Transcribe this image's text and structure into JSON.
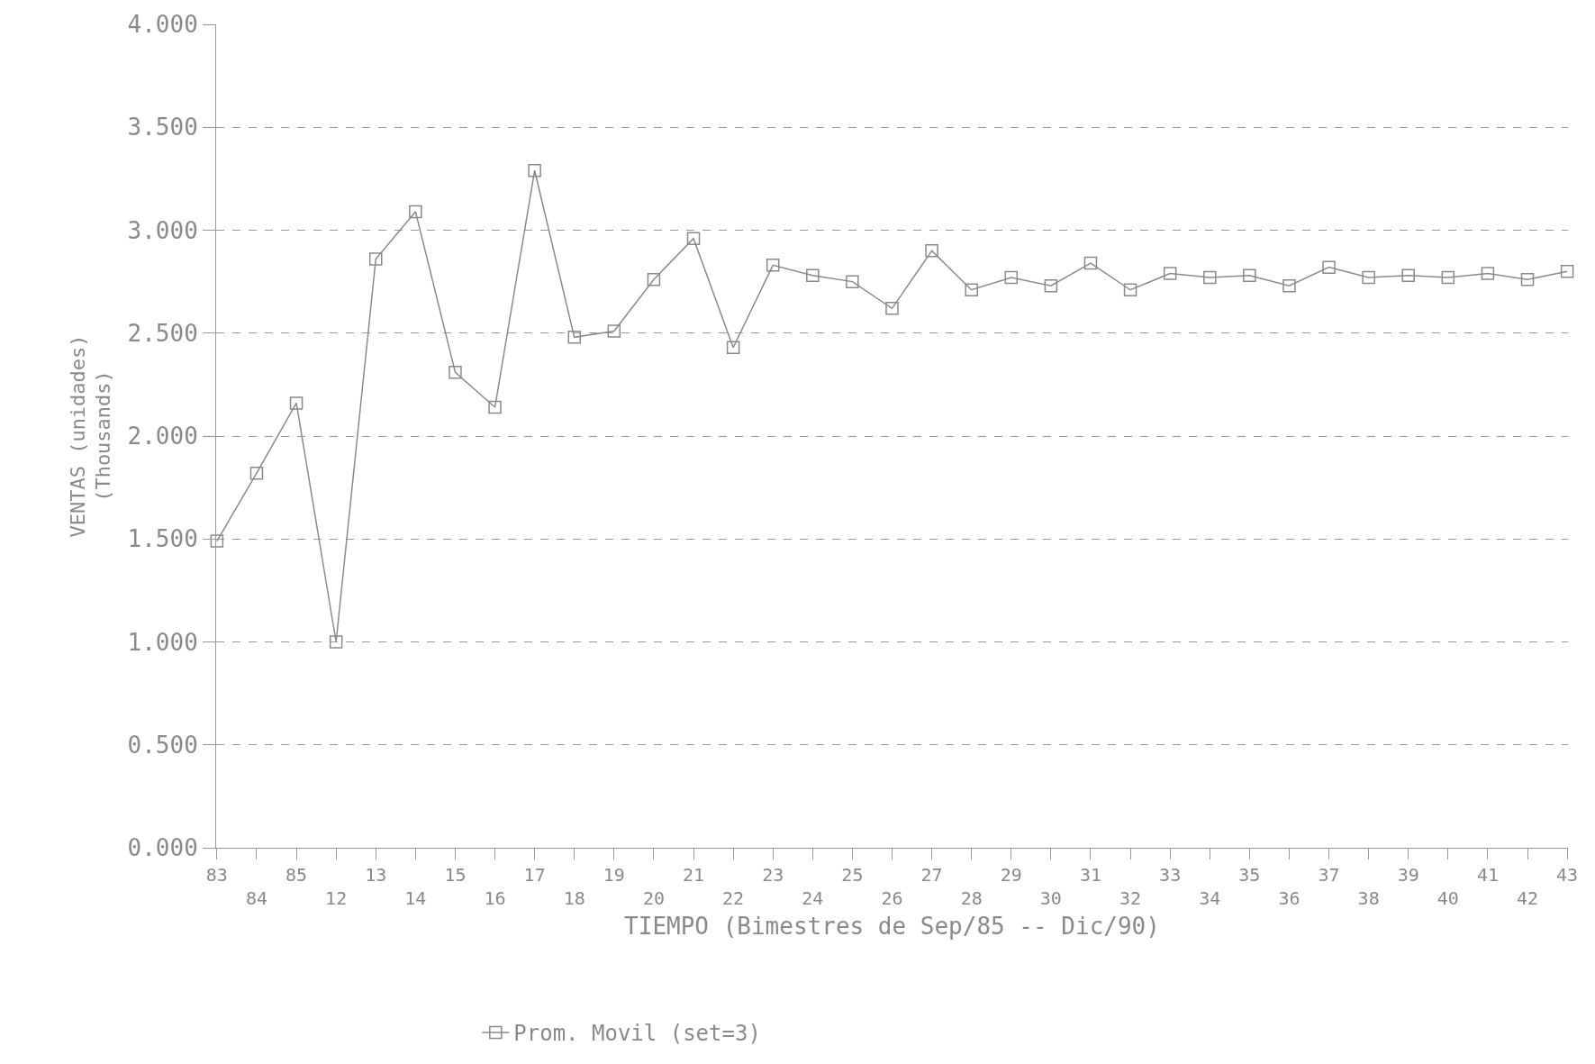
{
  "chart_data": {
    "type": "line",
    "xlabel": "TIEMPO (Bimestres de Sep/85 -- Dic/90)",
    "ylabel": "VENTAS (unidades)\n(Thousands)",
    "categories": [
      "83",
      "84",
      "85",
      "12",
      "13",
      "14",
      "15",
      "16",
      "17",
      "18",
      "19",
      "20",
      "21",
      "22",
      "23",
      "24",
      "25",
      "26",
      "27",
      "28",
      "29",
      "30",
      "31",
      "32",
      "33",
      "34",
      "35",
      "36",
      "37",
      "38",
      "39",
      "40",
      "41",
      "42",
      "43"
    ],
    "series": [
      {
        "name": "Prom. Movil (set=3)",
        "color": "#8a8a8a",
        "values": [
          1.49,
          1.82,
          2.16,
          1.0,
          2.86,
          3.09,
          2.31,
          2.14,
          3.29,
          2.48,
          2.51,
          2.76,
          2.96,
          2.43,
          2.83,
          2.78,
          2.75,
          2.62,
          2.9,
          2.71,
          2.77,
          2.73,
          2.84,
          2.71,
          2.79,
          2.77,
          2.78,
          2.73,
          2.82,
          2.77,
          2.78,
          2.77,
          2.79,
          2.76,
          2.8
        ]
      }
    ],
    "ylim": [
      0,
      4
    ],
    "yticks": [
      {
        "value": 0,
        "label": "0.000"
      },
      {
        "value": 0.5,
        "label": "0.500"
      },
      {
        "value": 1,
        "label": "1.000"
      },
      {
        "value": 1.5,
        "label": "1.500"
      },
      {
        "value": 2,
        "label": "2.000"
      },
      {
        "value": 2.5,
        "label": "2.500"
      },
      {
        "value": 3,
        "label": "3.000"
      },
      {
        "value": 3.5,
        "label": "3.500"
      },
      {
        "value": 4,
        "label": "4.000"
      }
    ],
    "grid": "y",
    "legend": "bottom",
    "marker": "square",
    "line_style": "solid"
  }
}
